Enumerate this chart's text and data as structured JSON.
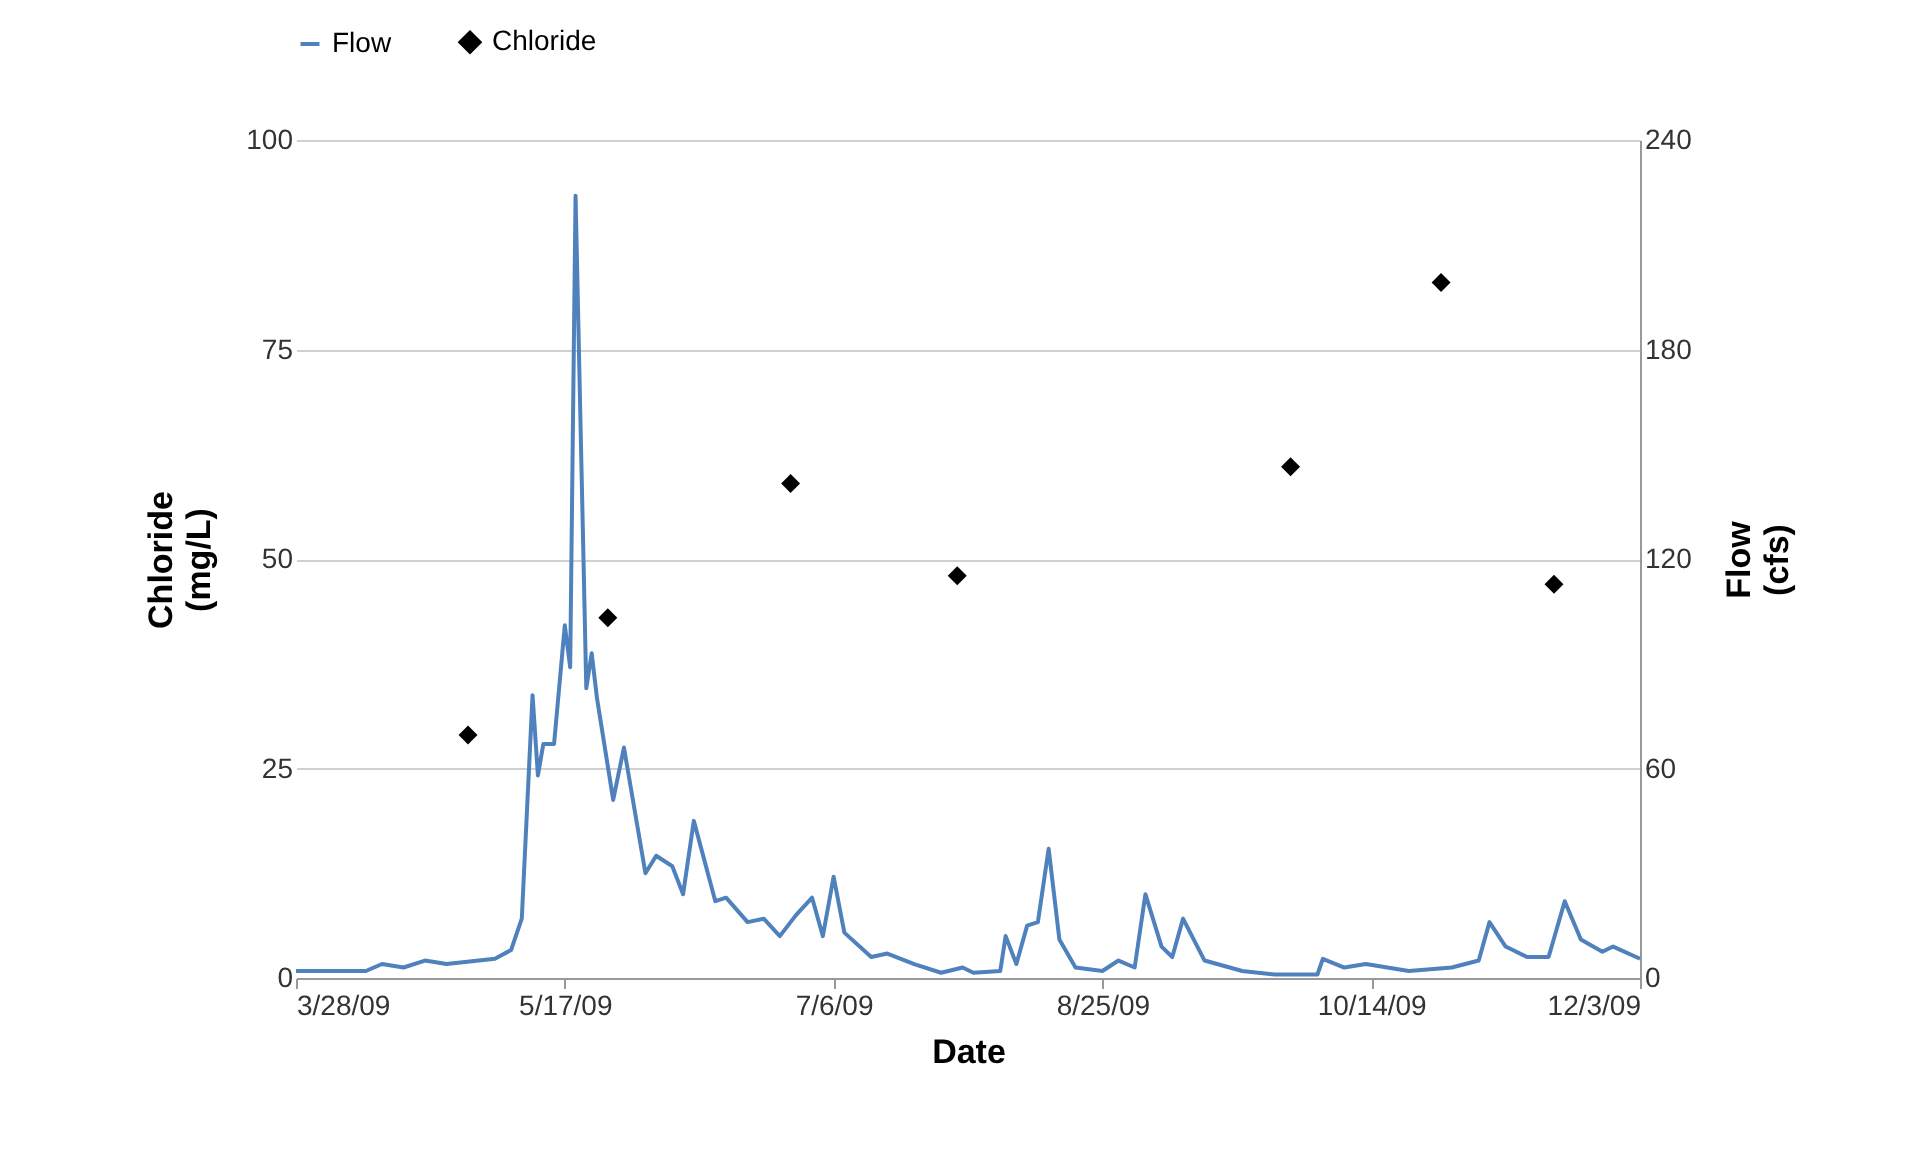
{
  "chart_data": {
    "type": "line",
    "xlabel": "Date",
    "ylabel": "Chloride\n(mg/L)",
    "y2label": "Flow\n(cfs)",
    "xlim": [
      "2009-03-28",
      "2009-12-03"
    ],
    "xticks": [
      {
        "value": "2009-03-28",
        "label": "3/28/09"
      },
      {
        "value": "2009-05-17",
        "label": "5/17/09"
      },
      {
        "value": "2009-07-06",
        "label": "7/6/09"
      },
      {
        "value": "2009-08-25",
        "label": "8/25/09"
      },
      {
        "value": "2009-10-14",
        "label": "10/14/09"
      },
      {
        "value": "2009-12-03",
        "label": "12/3/09"
      }
    ],
    "ylim": [
      0,
      100
    ],
    "yticks": [
      0,
      25,
      50,
      75,
      100
    ],
    "y2lim": [
      0,
      240
    ],
    "y2ticks": [
      0,
      60,
      120,
      180,
      240
    ],
    "grid": "y",
    "legend": "top",
    "series": [
      {
        "name": "Flow",
        "axis": "y2",
        "color": "#4f81bd",
        "marker": "none",
        "x": [
          "2009-03-28",
          "2009-04-10",
          "2009-04-13",
          "2009-04-17",
          "2009-04-21",
          "2009-04-25",
          "2009-05-04",
          "2009-05-07",
          "2009-05-09",
          "2009-05-11",
          "2009-05-12",
          "2009-05-13",
          "2009-05-15",
          "2009-05-17",
          "2009-05-18",
          "2009-05-19",
          "2009-05-21",
          "2009-05-22",
          "2009-05-23",
          "2009-05-26",
          "2009-05-28",
          "2009-06-01",
          "2009-06-03",
          "2009-06-06",
          "2009-06-08",
          "2009-06-10",
          "2009-06-14",
          "2009-06-16",
          "2009-06-20",
          "2009-06-23",
          "2009-06-26",
          "2009-06-29",
          "2009-07-02",
          "2009-07-04",
          "2009-07-06",
          "2009-07-08",
          "2009-07-13",
          "2009-07-16",
          "2009-07-21",
          "2009-07-26",
          "2009-07-30",
          "2009-08-01",
          "2009-08-06",
          "2009-08-07",
          "2009-08-09",
          "2009-08-11",
          "2009-08-13",
          "2009-08-15",
          "2009-08-17",
          "2009-08-20",
          "2009-08-25",
          "2009-08-28",
          "2009-08-31",
          "2009-09-02",
          "2009-09-05",
          "2009-09-07",
          "2009-09-09",
          "2009-09-13",
          "2009-09-20",
          "2009-09-26",
          "2009-10-04",
          "2009-10-05",
          "2009-10-09",
          "2009-10-13",
          "2009-10-21",
          "2009-10-29",
          "2009-11-03",
          "2009-11-05",
          "2009-11-08",
          "2009-11-12",
          "2009-11-16",
          "2009-11-19",
          "2009-11-22",
          "2009-11-26",
          "2009-11-28",
          "2009-12-03"
        ],
        "values": [
          2,
          2,
          4,
          3,
          5,
          4,
          5.5,
          8,
          17,
          81,
          58,
          67,
          67,
          101,
          89,
          224,
          83,
          93,
          80,
          51,
          66,
          30,
          35,
          32,
          24,
          45,
          22,
          23,
          16,
          17,
          12,
          18,
          23,
          12,
          29,
          13,
          6,
          7,
          4,
          1.5,
          3,
          1.5,
          2,
          12,
          4,
          15,
          16,
          37,
          11,
          3,
          2,
          5,
          3,
          24,
          9,
          6,
          17,
          5,
          2,
          1,
          1,
          5.5,
          3,
          4,
          2,
          3,
          5,
          16,
          9,
          6,
          6,
          22,
          11,
          7.5,
          9,
          5.5
        ]
      },
      {
        "name": "Chloride",
        "type": "scatter",
        "color": "#000000",
        "marker": "diamond",
        "x": [
          "2009-04-29",
          "2009-05-25",
          "2009-06-28",
          "2009-07-29",
          "2009-09-29",
          "2009-10-27",
          "2009-11-17"
        ],
        "values": [
          29,
          43,
          59,
          48,
          61,
          83,
          47
        ]
      }
    ]
  }
}
